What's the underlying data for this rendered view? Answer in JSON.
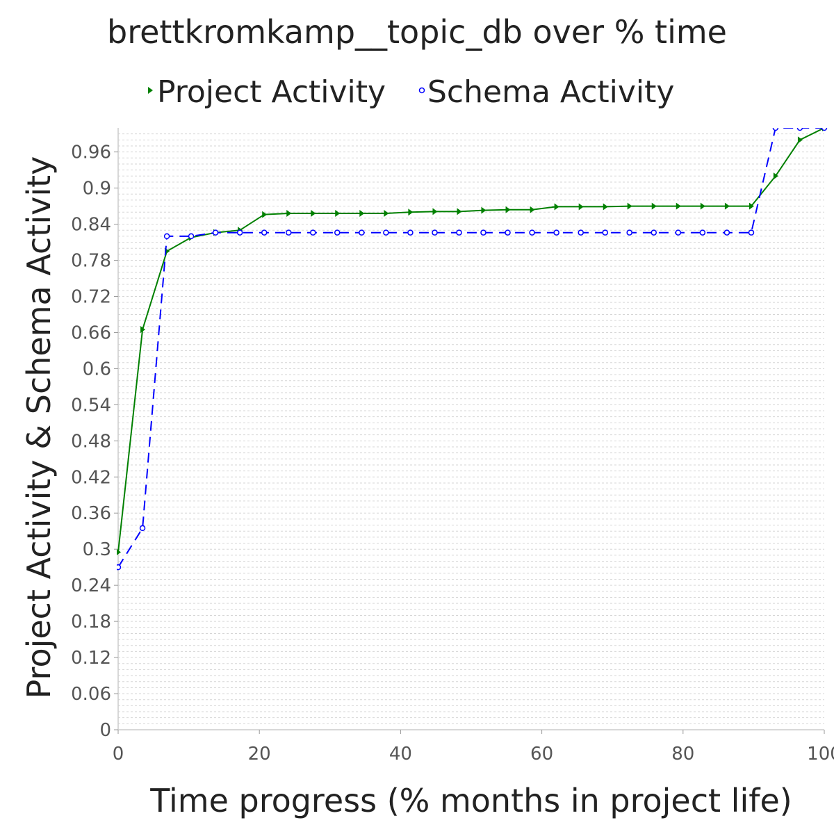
{
  "chart_data": {
    "type": "line",
    "title": "brettkromkamp__topic_db over % time",
    "xlabel": "Time progress (% months in project life)",
    "ylabel": "Project Activity & Schema Activity",
    "xlim": [
      0,
      100
    ],
    "ylim": [
      0,
      1.0
    ],
    "x_ticks": [
      "0",
      "20",
      "40",
      "60",
      "80",
      "100"
    ],
    "y_ticks": [
      "0",
      "0.06",
      "0.12",
      "0.18",
      "0.24",
      "0.3",
      "0.36",
      "0.42",
      "0.48",
      "0.54",
      "0.6",
      "0.66",
      "0.72",
      "0.78",
      "0.84",
      "0.9",
      "0.96"
    ],
    "grid": true,
    "legend_position": "top",
    "series": [
      {
        "name": "Project Activity",
        "color": "#008000",
        "style": "solid",
        "marker": "triangle-right",
        "x": [
          0,
          3.45,
          6.9,
          10.34,
          13.79,
          17.24,
          20.69,
          24.14,
          27.59,
          31.03,
          34.48,
          37.93,
          41.38,
          44.83,
          48.28,
          51.72,
          55.17,
          58.62,
          62.07,
          65.52,
          68.97,
          72.41,
          75.86,
          79.31,
          82.76,
          86.21,
          89.66,
          93.1,
          96.55,
          100
        ],
        "y": [
          0.295,
          0.665,
          0.795,
          0.818,
          0.826,
          0.83,
          0.856,
          0.858,
          0.858,
          0.858,
          0.858,
          0.858,
          0.86,
          0.861,
          0.861,
          0.863,
          0.864,
          0.864,
          0.869,
          0.869,
          0.869,
          0.87,
          0.87,
          0.87,
          0.87,
          0.87,
          0.87,
          0.92,
          0.98,
          1.0
        ]
      },
      {
        "name": "Schema Activity",
        "color": "#0000ff",
        "style": "dashed",
        "marker": "circle",
        "x": [
          0,
          3.45,
          6.9,
          10.34,
          13.79,
          17.24,
          20.69,
          24.14,
          27.59,
          31.03,
          34.48,
          37.93,
          41.38,
          44.83,
          48.28,
          51.72,
          55.17,
          58.62,
          62.07,
          65.52,
          68.97,
          72.41,
          75.86,
          79.31,
          82.76,
          86.21,
          89.66,
          93.1,
          96.55,
          100
        ],
        "y": [
          0.27,
          0.335,
          0.82,
          0.82,
          0.826,
          0.826,
          0.826,
          0.826,
          0.826,
          0.826,
          0.826,
          0.826,
          0.826,
          0.826,
          0.826,
          0.826,
          0.826,
          0.826,
          0.826,
          0.826,
          0.826,
          0.826,
          0.826,
          0.826,
          0.826,
          0.826,
          0.826,
          1.0,
          1.0,
          1.0
        ]
      }
    ]
  }
}
